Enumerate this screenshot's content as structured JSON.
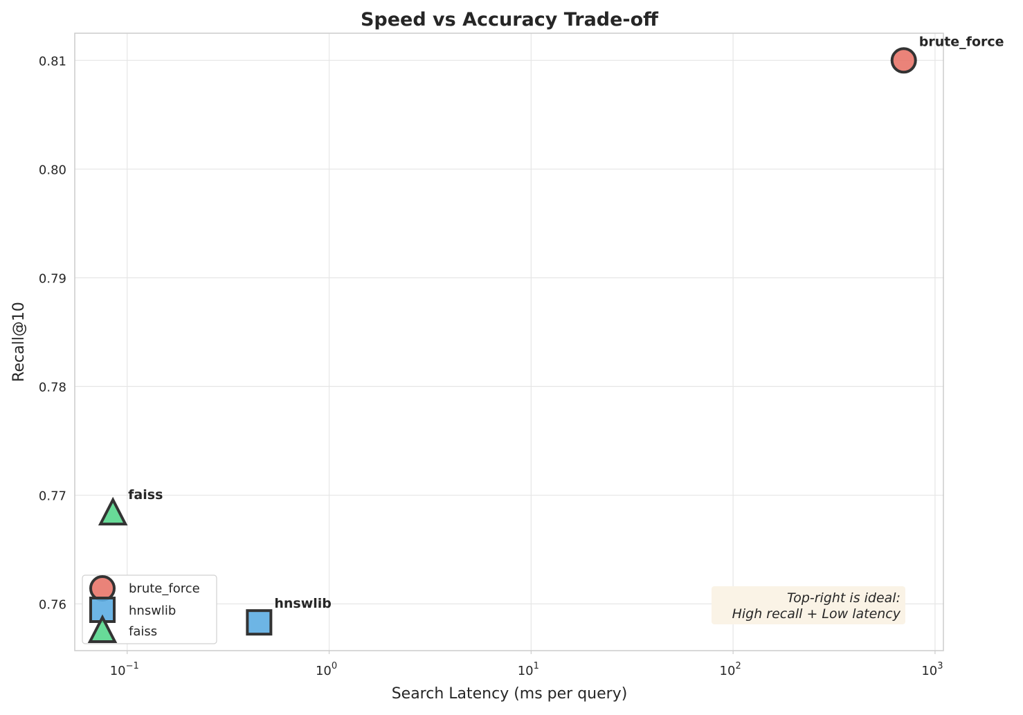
{
  "chart_data": {
    "type": "scatter",
    "title": "Speed vs Accuracy Trade-off",
    "xlabel": "Search Latency (ms per query)",
    "ylabel": "Recall@10",
    "xscale": "log",
    "xlim": [
      0.055,
      1100
    ],
    "ylim": [
      0.7557,
      0.8125
    ],
    "grid": true,
    "legend_position": "lower-left",
    "x_ticks": [
      {
        "value": 0.1,
        "base": "10",
        "exp": "−1"
      },
      {
        "value": 1,
        "base": "10",
        "exp": "0"
      },
      {
        "value": 10,
        "base": "10",
        "exp": "1"
      },
      {
        "value": 100,
        "base": "10",
        "exp": "2"
      },
      {
        "value": 1000,
        "base": "10",
        "exp": "3"
      }
    ],
    "y_ticks": [
      {
        "value": 0.76,
        "label": "0.76"
      },
      {
        "value": 0.77,
        "label": "0.77"
      },
      {
        "value": 0.78,
        "label": "0.78"
      },
      {
        "value": 0.79,
        "label": "0.79"
      },
      {
        "value": 0.8,
        "label": "0.80"
      },
      {
        "value": 0.81,
        "label": "0.81"
      }
    ],
    "series": [
      {
        "name": "brute_force",
        "marker": "circle",
        "color": "#e8756a",
        "x": 700,
        "y": 0.81
      },
      {
        "name": "hnswlib",
        "marker": "square",
        "color": "#5dade2",
        "x": 0.45,
        "y": 0.7583
      },
      {
        "name": "faiss",
        "marker": "triangle",
        "color": "#58d68d",
        "x": 0.085,
        "y": 0.7683
      }
    ],
    "annotation": {
      "lines": [
        "Top-right is ideal:",
        "High recall + Low latency"
      ],
      "background": "#faf3e6"
    }
  }
}
